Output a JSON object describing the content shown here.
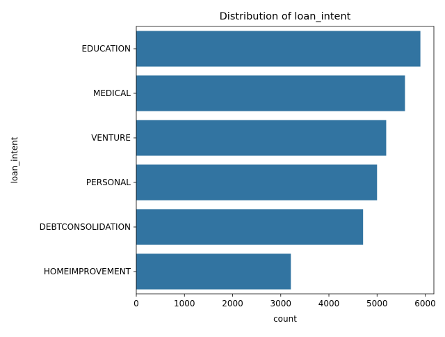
{
  "chart_data": {
    "type": "bar",
    "orientation": "horizontal",
    "title": "Distribution of loan_intent",
    "xlabel": "count",
    "ylabel": "loan_intent",
    "categories": [
      "EDUCATION",
      "MEDICAL",
      "VENTURE",
      "PERSONAL",
      "DEBTCONSOLIDATION",
      "HOMEIMPROVEMENT"
    ],
    "values": [
      5900,
      5580,
      5190,
      5000,
      4710,
      3210
    ],
    "xlim": [
      0,
      6180
    ],
    "xticks": [
      0,
      1000,
      2000,
      3000,
      4000,
      5000,
      6000
    ],
    "xtick_labels": [
      "0",
      "1000",
      "2000",
      "3000",
      "4000",
      "5000",
      "6000"
    ],
    "bar_color": "#3274a1",
    "grid": false,
    "legend": "none"
  }
}
